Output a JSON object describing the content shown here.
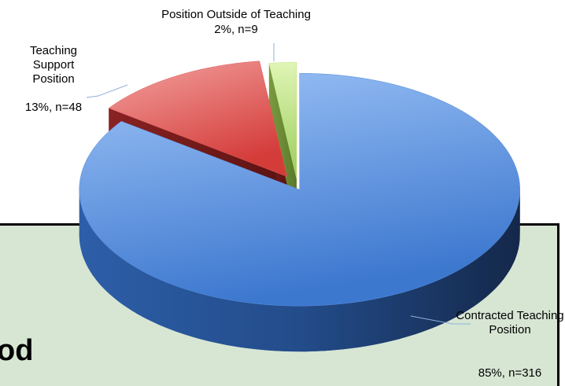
{
  "chart_data": {
    "type": "pie3d",
    "categories": [
      "Contracted Teaching Position",
      "Teaching Support Position",
      "Position Outside of Teaching"
    ],
    "values": [
      85,
      13,
      2
    ],
    "value_labels": [
      "85%, n=316",
      "13%, n=48",
      "2%, n=9"
    ],
    "colors": [
      "#5b8fdc",
      "#e05a5a",
      "#b6e07a"
    ]
  },
  "slide": {
    "text": "od"
  }
}
